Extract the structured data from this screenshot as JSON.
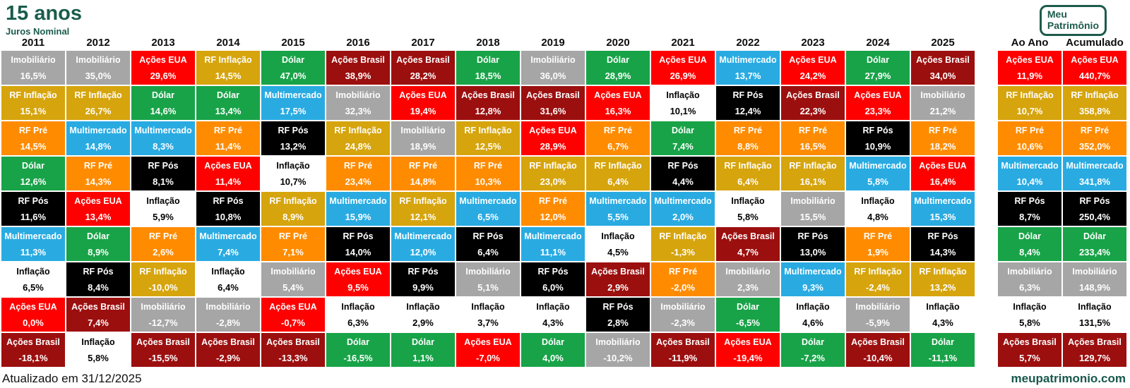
{
  "logo": {
    "line1": "Meu",
    "line2": "Patrimônio"
  },
  "footer": {
    "updated": "Atualizado em 31/12/2025",
    "website": "meupatrimonio.com"
  },
  "chart_data": {
    "type": "table",
    "title": "15 anos",
    "subtitle": "Juros Nominal",
    "description": "Quilt chart of annual nominal returns by asset class, ranked best to worst per year (pt-BR decimal comma percentages)",
    "asset_colors": {
      "Imobiliário": {
        "bg": "#A6A6A6",
        "text": "#FFFFFF"
      },
      "RF Inflação": {
        "bg": "#D6A40D",
        "text": "#FFFFFF"
      },
      "RF Pré": {
        "bg": "#FF8C00",
        "text": "#FFFFFF"
      },
      "Dólar": {
        "bg": "#18A348",
        "text": "#FFFFFF"
      },
      "RF Pós": {
        "bg": "#000000",
        "text": "#FFFFFF"
      },
      "Multimercado": {
        "bg": "#29ABE2",
        "text": "#FFFFFF"
      },
      "Inflação": {
        "bg": "#FFFFFF",
        "text": "#000000"
      },
      "Ações EUA": {
        "bg": "#FE0000",
        "text": "#FFFFFF"
      },
      "Ações Brasil": {
        "bg": "#9C0F0F",
        "text": "#FFFFFF"
      }
    },
    "year_columns": [
      {
        "label": "2011",
        "cells": [
          {
            "asset": "Imobiliário",
            "value": "16,5%"
          },
          {
            "asset": "RF Inflação",
            "value": "15,1%"
          },
          {
            "asset": "RF Pré",
            "value": "14,5%"
          },
          {
            "asset": "Dólar",
            "value": "12,6%"
          },
          {
            "asset": "RF Pós",
            "value": "11,6%"
          },
          {
            "asset": "Multimercado",
            "value": "11,3%"
          },
          {
            "asset": "Inflação",
            "value": "6,5%"
          },
          {
            "asset": "Ações EUA",
            "value": "0,0%"
          },
          {
            "asset": "Ações Brasil",
            "value": "-18,1%"
          }
        ]
      },
      {
        "label": "2012",
        "cells": [
          {
            "asset": "Imobiliário",
            "value": "35,0%"
          },
          {
            "asset": "RF Inflação",
            "value": "26,7%"
          },
          {
            "asset": "Multimercado",
            "value": "14,8%"
          },
          {
            "asset": "RF Pré",
            "value": "14,3%"
          },
          {
            "asset": "Ações EUA",
            "value": "13,4%"
          },
          {
            "asset": "Dólar",
            "value": "8,9%"
          },
          {
            "asset": "RF Pós",
            "value": "8,4%"
          },
          {
            "asset": "Ações Brasil",
            "value": "7,4%"
          },
          {
            "asset": "Inflação",
            "value": "5,8%"
          }
        ]
      },
      {
        "label": "2013",
        "cells": [
          {
            "asset": "Ações EUA",
            "value": "29,6%"
          },
          {
            "asset": "Dólar",
            "value": "14,6%"
          },
          {
            "asset": "Multimercado",
            "value": "8,3%"
          },
          {
            "asset": "RF Pós",
            "value": "8,1%"
          },
          {
            "asset": "Inflação",
            "value": "5,9%"
          },
          {
            "asset": "RF Pré",
            "value": "2,6%"
          },
          {
            "asset": "RF Inflação",
            "value": "-10,0%"
          },
          {
            "asset": "Imobiliário",
            "value": "-12,7%"
          },
          {
            "asset": "Ações Brasil",
            "value": "-15,5%"
          }
        ]
      },
      {
        "label": "2014",
        "cells": [
          {
            "asset": "RF Inflação",
            "value": "14,5%"
          },
          {
            "asset": "Dólar",
            "value": "13,4%"
          },
          {
            "asset": "RF Pré",
            "value": "11,4%"
          },
          {
            "asset": "Ações EUA",
            "value": "11,4%"
          },
          {
            "asset": "RF Pós",
            "value": "10,8%"
          },
          {
            "asset": "Multimercado",
            "value": "7,4%"
          },
          {
            "asset": "Inflação",
            "value": "6,4%"
          },
          {
            "asset": "Imobiliário",
            "value": "-2,8%"
          },
          {
            "asset": "Ações Brasil",
            "value": "-2,9%"
          }
        ]
      },
      {
        "label": "2015",
        "cells": [
          {
            "asset": "Dólar",
            "value": "47,0%"
          },
          {
            "asset": "Multimercado",
            "value": "17,5%"
          },
          {
            "asset": "RF Pós",
            "value": "13,2%"
          },
          {
            "asset": "Inflação",
            "value": "10,7%"
          },
          {
            "asset": "RF Inflação",
            "value": "8,9%"
          },
          {
            "asset": "RF Pré",
            "value": "7,1%"
          },
          {
            "asset": "Imobiliário",
            "value": "5,4%"
          },
          {
            "asset": "Ações EUA",
            "value": "-0,7%"
          },
          {
            "asset": "Ações Brasil",
            "value": "-13,3%"
          }
        ]
      },
      {
        "label": "2016",
        "cells": [
          {
            "asset": "Ações Brasil",
            "value": "38,9%"
          },
          {
            "asset": "Imobiliário",
            "value": "32,3%"
          },
          {
            "asset": "RF Inflação",
            "value": "24,8%"
          },
          {
            "asset": "RF Pré",
            "value": "23,4%"
          },
          {
            "asset": "Multimercado",
            "value": "15,9%"
          },
          {
            "asset": "RF Pós",
            "value": "14,0%"
          },
          {
            "asset": "Ações EUA",
            "value": "9,5%"
          },
          {
            "asset": "Inflação",
            "value": "6,3%"
          },
          {
            "asset": "Dólar",
            "value": "-16,5%"
          }
        ]
      },
      {
        "label": "2017",
        "cells": [
          {
            "asset": "Ações Brasil",
            "value": "28,2%"
          },
          {
            "asset": "Ações EUA",
            "value": "19,4%"
          },
          {
            "asset": "Imobiliário",
            "value": "18,9%"
          },
          {
            "asset": "RF Pré",
            "value": "14,8%"
          },
          {
            "asset": "RF Inflação",
            "value": "12,1%"
          },
          {
            "asset": "Multimercado",
            "value": "12,0%"
          },
          {
            "asset": "RF Pós",
            "value": "9,9%"
          },
          {
            "asset": "Inflação",
            "value": "2,9%"
          },
          {
            "asset": "Dólar",
            "value": "1,1%"
          }
        ]
      },
      {
        "label": "2018",
        "cells": [
          {
            "asset": "Dólar",
            "value": "18,5%"
          },
          {
            "asset": "Ações Brasil",
            "value": "12,8%"
          },
          {
            "asset": "RF Inflação",
            "value": "12,5%"
          },
          {
            "asset": "RF Pré",
            "value": "10,3%"
          },
          {
            "asset": "Multimercado",
            "value": "6,5%"
          },
          {
            "asset": "RF Pós",
            "value": "6,4%"
          },
          {
            "asset": "Imobiliário",
            "value": "5,1%"
          },
          {
            "asset": "Inflação",
            "value": "3,7%"
          },
          {
            "asset": "Ações EUA",
            "value": "-7,0%"
          }
        ]
      },
      {
        "label": "2019",
        "cells": [
          {
            "asset": "Imobiliário",
            "value": "36,0%"
          },
          {
            "asset": "Ações Brasil",
            "value": "31,6%"
          },
          {
            "asset": "Ações EUA",
            "value": "28,9%"
          },
          {
            "asset": "RF Inflação",
            "value": "23,0%"
          },
          {
            "asset": "RF Pré",
            "value": "12,0%"
          },
          {
            "asset": "Multimercado",
            "value": "11,1%"
          },
          {
            "asset": "RF Pós",
            "value": "6,0%"
          },
          {
            "asset": "Inflação",
            "value": "4,3%"
          },
          {
            "asset": "Dólar",
            "value": "4,0%"
          }
        ]
      },
      {
        "label": "2020",
        "cells": [
          {
            "asset": "Dólar",
            "value": "28,9%"
          },
          {
            "asset": "Ações EUA",
            "value": "16,3%"
          },
          {
            "asset": "RF Pré",
            "value": "6,7%"
          },
          {
            "asset": "RF Inflação",
            "value": "6,4%"
          },
          {
            "asset": "Multimercado",
            "value": "5,5%"
          },
          {
            "asset": "Inflação",
            "value": "4,5%"
          },
          {
            "asset": "Ações Brasil",
            "value": "2,9%"
          },
          {
            "asset": "RF Pós",
            "value": "2,8%"
          },
          {
            "asset": "Imobiliário",
            "value": "-10,2%"
          }
        ]
      },
      {
        "label": "2021",
        "cells": [
          {
            "asset": "Ações EUA",
            "value": "26,9%"
          },
          {
            "asset": "Inflação",
            "value": "10,1%"
          },
          {
            "asset": "Dólar",
            "value": "7,4%"
          },
          {
            "asset": "RF Pós",
            "value": "4,4%"
          },
          {
            "asset": "Multimercado",
            "value": "2,0%"
          },
          {
            "asset": "RF Inflação",
            "value": "-1,3%"
          },
          {
            "asset": "RF Pré",
            "value": "-2,0%"
          },
          {
            "asset": "Imobiliário",
            "value": "-2,3%"
          },
          {
            "asset": "Ações Brasil",
            "value": "-11,9%"
          }
        ]
      },
      {
        "label": "2022",
        "cells": [
          {
            "asset": "Multimercado",
            "value": "13,7%"
          },
          {
            "asset": "RF Pós",
            "value": "12,4%"
          },
          {
            "asset": "RF Pré",
            "value": "8,8%"
          },
          {
            "asset": "RF Inflação",
            "value": "6,4%"
          },
          {
            "asset": "Inflação",
            "value": "5,8%"
          },
          {
            "asset": "Ações Brasil",
            "value": "4,7%"
          },
          {
            "asset": "Imobiliário",
            "value": "2,3%"
          },
          {
            "asset": "Dólar",
            "value": "-6,5%"
          },
          {
            "asset": "Ações EUA",
            "value": "-19,4%"
          }
        ]
      },
      {
        "label": "2023",
        "cells": [
          {
            "asset": "Ações EUA",
            "value": "24,2%"
          },
          {
            "asset": "Ações Brasil",
            "value": "22,3%"
          },
          {
            "asset": "RF Pré",
            "value": "16,5%"
          },
          {
            "asset": "RF Inflação",
            "value": "16,1%"
          },
          {
            "asset": "Imobiliário",
            "value": "15,5%"
          },
          {
            "asset": "RF Pós",
            "value": "13,0%"
          },
          {
            "asset": "Multimercado",
            "value": "9,3%"
          },
          {
            "asset": "Inflação",
            "value": "4,6%"
          },
          {
            "asset": "Dólar",
            "value": "-7,2%"
          }
        ]
      },
      {
        "label": "2024",
        "cells": [
          {
            "asset": "Dólar",
            "value": "27,9%"
          },
          {
            "asset": "Ações EUA",
            "value": "23,3%"
          },
          {
            "asset": "RF Pós",
            "value": "10,9%"
          },
          {
            "asset": "Multimercado",
            "value": "5,8%"
          },
          {
            "asset": "Inflação",
            "value": "4,8%"
          },
          {
            "asset": "RF Pré",
            "value": "1,9%"
          },
          {
            "asset": "RF Inflação",
            "value": "-2,4%"
          },
          {
            "asset": "Imobiliário",
            "value": "-5,9%"
          },
          {
            "asset": "Ações Brasil",
            "value": "-10,4%"
          }
        ]
      },
      {
        "label": "2025",
        "cells": [
          {
            "asset": "Ações Brasil",
            "value": "34,0%"
          },
          {
            "asset": "Imobiliário",
            "value": "21,2%"
          },
          {
            "asset": "RF Pré",
            "value": "18,2%"
          },
          {
            "asset": "Ações EUA",
            "value": "16,4%"
          },
          {
            "asset": "Multimercado",
            "value": "15,3%"
          },
          {
            "asset": "RF Pós",
            "value": "14,3%"
          },
          {
            "asset": "RF Inflação",
            "value": "13,2%"
          },
          {
            "asset": "Inflação",
            "value": "4,3%"
          },
          {
            "asset": "Dólar",
            "value": "-11,1%"
          }
        ]
      }
    ],
    "summary_columns": [
      {
        "label": "Ao Ano",
        "cells": [
          {
            "asset": "Ações EUA",
            "value": "11,9%"
          },
          {
            "asset": "RF Inflação",
            "value": "10,7%"
          },
          {
            "asset": "RF Pré",
            "value": "10,6%"
          },
          {
            "asset": "Multimercado",
            "value": "10,4%"
          },
          {
            "asset": "RF Pós",
            "value": "8,7%"
          },
          {
            "asset": "Dólar",
            "value": "8,4%"
          },
          {
            "asset": "Imobiliário",
            "value": "6,3%"
          },
          {
            "asset": "Inflação",
            "value": "5,8%"
          },
          {
            "asset": "Ações Brasil",
            "value": "5,7%"
          }
        ]
      },
      {
        "label": "Acumulado",
        "cells": [
          {
            "asset": "Ações EUA",
            "value": "440,7%"
          },
          {
            "asset": "RF Inflação",
            "value": "358,8%"
          },
          {
            "asset": "RF Pré",
            "value": "352,0%"
          },
          {
            "asset": "Multimercado",
            "value": "341,8%"
          },
          {
            "asset": "RF Pós",
            "value": "250,4%"
          },
          {
            "asset": "Dólar",
            "value": "233,4%"
          },
          {
            "asset": "Imobiliário",
            "value": "148,9%"
          },
          {
            "asset": "Inflação",
            "value": "131,5%"
          },
          {
            "asset": "Ações Brasil",
            "value": "129,7%"
          }
        ]
      }
    ]
  }
}
